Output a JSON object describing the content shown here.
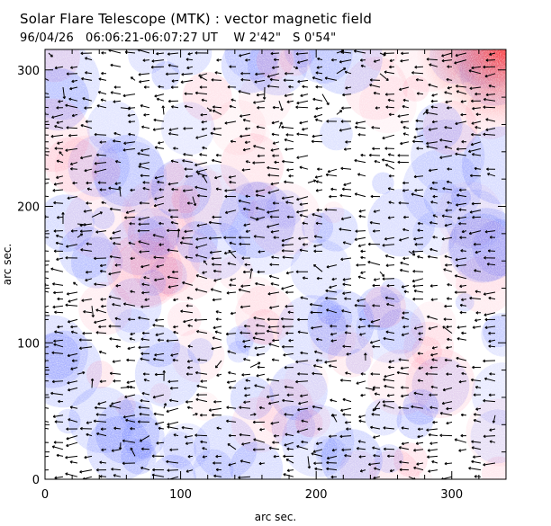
{
  "figure": {
    "title": "Solar Flare Telescope (MTK) : vector magnetic field",
    "subtitle_date": "96/04/26",
    "subtitle_time": "06:06:21-06:07:27 UT",
    "subtitle_pos_w": "W 2'42\"",
    "subtitle_pos_s": "S 0'54\""
  },
  "chart_data": {
    "type": "heatmap",
    "overlay": "vector-arrows",
    "xlabel": "arc sec.",
    "ylabel": "arc sec.",
    "xlim": [
      0,
      340
    ],
    "ylim": [
      0,
      315
    ],
    "x_ticks": [
      0,
      100,
      200,
      300
    ],
    "y_ticks": [
      0,
      100,
      200,
      300
    ],
    "x_tick_labels": [
      "0",
      "100",
      "200",
      "300"
    ],
    "y_tick_labels": [
      "0",
      "100",
      "200",
      "300"
    ],
    "colors": {
      "positive": "#ff3030",
      "negative": "#5a6cff",
      "arrow": "#000000",
      "background": "#ffffff"
    },
    "strong_positive_region": {
      "x": [
        300,
        340
      ],
      "y": [
        285,
        315
      ]
    },
    "arrow_direction": "mostly horizontal, pointing left (west)"
  }
}
